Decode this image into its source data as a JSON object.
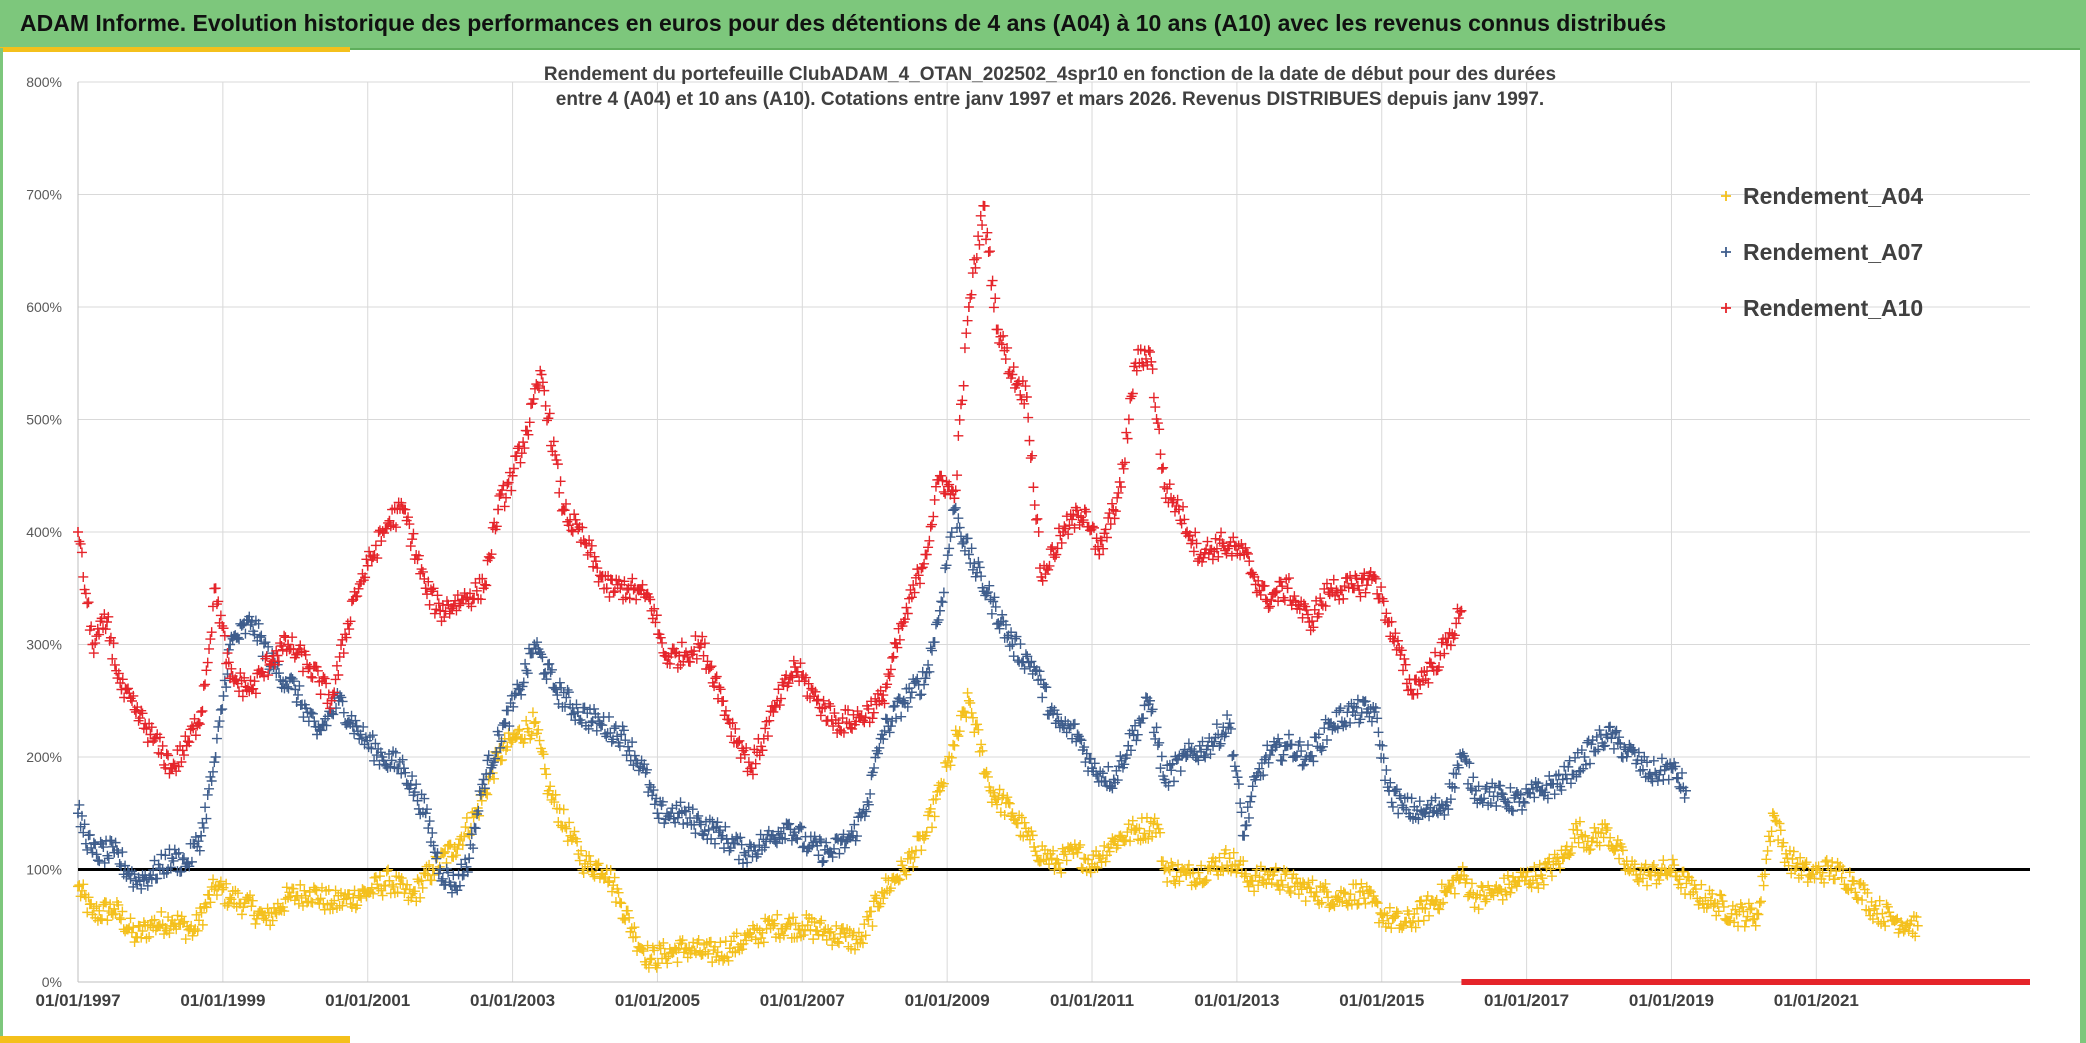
{
  "header": {
    "title": "ADAM Informe. Evolution historique des performances en euros pour des détentions de 4 ans (A04) à 10 ans (A10) avec les revenus connus distribués"
  },
  "chart_data": {
    "type": "scatter",
    "title_lines": [
      "Rendement du portefeuille ClubADAM_4_OTAN_202502_4spr10  en fonction de la date de début pour des durées",
      "entre 4 (A04) et 10 ans (A10). Cotations entre janv 1997 et mars 2026. Revenus DISTRIBUES depuis janv 1997."
    ],
    "xlabel": "",
    "ylabel": "",
    "xlim": [
      1997.0,
      2023.95
    ],
    "ylim": [
      0,
      800
    ],
    "y_unit": "%",
    "y_ticks": [
      "0%",
      "100%",
      "200%",
      "300%",
      "400%",
      "500%",
      "600%",
      "700%",
      "800%"
    ],
    "x_ticks": [
      "01/01/1997",
      "01/01/1999",
      "01/01/2001",
      "01/01/2003",
      "01/01/2005",
      "01/01/2007",
      "01/01/2009",
      "01/01/2011",
      "01/01/2013",
      "01/01/2015",
      "01/01/2017",
      "01/01/2019",
      "01/01/2021"
    ],
    "x_tick_years": [
      1997,
      1999,
      2001,
      2003,
      2005,
      2007,
      2009,
      2011,
      2013,
      2015,
      2017,
      2019,
      2021
    ],
    "reference_line": 100,
    "grid": true,
    "legend_position": "top-right",
    "series": [
      {
        "name": "Rendement_A04",
        "color": "#f4c01c",
        "marker": "plus",
        "x": [
          1997.0,
          1997.2,
          1997.5,
          1997.8,
          1998.0,
          1998.3,
          1998.6,
          1998.9,
          1999.1,
          1999.3,
          1999.6,
          1999.9,
          2000.2,
          2000.5,
          2000.8,
          2001.0,
          2001.3,
          2001.6,
          2001.9,
          2002.2,
          2002.5,
          2002.8,
          2003.0,
          2003.3,
          2003.5,
          2003.8,
          2004.0,
          2004.3,
          2004.5,
          2004.7,
          2004.9,
          2005.1,
          2005.4,
          2005.7,
          2006.0,
          2006.3,
          2006.6,
          2007.0,
          2007.3,
          2007.6,
          2007.8,
          2008.1,
          2008.4,
          2008.7,
          2008.9,
          2009.1,
          2009.3,
          2009.6,
          2009.9,
          2010.2,
          2010.5,
          2010.8,
          2011.0,
          2011.3,
          2011.6,
          2011.9,
          2012.0,
          2012.3,
          2012.6,
          2012.9,
          2013.2,
          2013.5,
          2013.8,
          2014.1,
          2014.4,
          2014.7,
          2015.0,
          2015.3,
          2015.6,
          2015.9,
          2016.1,
          2016.3,
          2016.6,
          2016.9,
          2017.2,
          2017.5,
          2017.7,
          2017.9,
          2018.1,
          2018.4,
          2018.7,
          2019.0,
          2019.3,
          2019.6,
          2019.9,
          2020.2,
          2020.4,
          2020.6,
          2020.9,
          2021.2,
          2021.5,
          2021.8,
          2022.1,
          2022.4
        ],
        "values": [
          85,
          60,
          65,
          40,
          50,
          55,
          45,
          85,
          75,
          70,
          55,
          75,
          80,
          70,
          75,
          80,
          90,
          75,
          100,
          120,
          150,
          200,
          215,
          230,
          170,
          130,
          105,
          100,
          70,
          40,
          20,
          25,
          30,
          25,
          30,
          40,
          50,
          50,
          45,
          40,
          35,
          80,
          100,
          130,
          170,
          210,
          250,
          170,
          150,
          120,
          105,
          115,
          105,
          125,
          135,
          140,
          100,
          95,
          100,
          110,
          90,
          95,
          85,
          80,
          75,
          80,
          60,
          50,
          65,
          80,
          95,
          75,
          80,
          90,
          95,
          110,
          135,
          125,
          135,
          100,
          95,
          100,
          80,
          70,
          60,
          60,
          150,
          110,
          95,
          100,
          90,
          65,
          55,
          50
        ]
      },
      {
        "name": "Rendement_A07",
        "color": "#3e5d8c",
        "marker": "plus",
        "x": [
          1997.0,
          1997.2,
          1997.5,
          1997.8,
          1998.0,
          1998.3,
          1998.5,
          1998.7,
          1998.9,
          1999.1,
          1999.4,
          1999.7,
          2000.0,
          2000.3,
          2000.6,
          2000.9,
          2001.2,
          2001.5,
          2001.8,
          2002.0,
          2002.2,
          2002.4,
          2002.6,
          2002.9,
          2003.1,
          2003.3,
          2003.6,
          2003.9,
          2004.2,
          2004.5,
          2004.8,
          2005.0,
          2005.3,
          2005.6,
          2005.9,
          2006.2,
          2006.5,
          2006.8,
          2007.1,
          2007.4,
          2007.7,
          2007.9,
          2008.1,
          2008.4,
          2008.7,
          2008.9,
          2009.1,
          2009.3,
          2009.6,
          2009.9,
          2010.2,
          2010.5,
          2010.8,
          2011.0,
          2011.3,
          2011.5,
          2011.8,
          2012.0,
          2012.3,
          2012.6,
          2012.9,
          2013.1,
          2013.2,
          2013.4,
          2013.7,
          2014.0,
          2014.3,
          2014.6,
          2014.9,
          2015.1,
          2015.3,
          2015.6,
          2015.9,
          2016.1,
          2016.3,
          2016.6,
          2016.9,
          2017.2,
          2017.5,
          2017.8,
          2018.1,
          2018.4,
          2018.7,
          2019.0,
          2019.2
        ],
        "values": [
          150,
          115,
          115,
          90,
          95,
          110,
          105,
          130,
          200,
          300,
          320,
          280,
          260,
          220,
          250,
          220,
          200,
          190,
          150,
          100,
          85,
          110,
          180,
          230,
          260,
          300,
          260,
          240,
          230,
          220,
          190,
          150,
          150,
          140,
          130,
          115,
          125,
          140,
          120,
          115,
          130,
          160,
          220,
          250,
          270,
          330,
          420,
          380,
          340,
          300,
          280,
          230,
          220,
          190,
          180,
          210,
          250,
          180,
          200,
          210,
          230,
          130,
          165,
          200,
          210,
          200,
          230,
          240,
          240,
          170,
          155,
          150,
          160,
          200,
          170,
          165,
          160,
          170,
          180,
          200,
          220,
          205,
          185,
          190,
          170
        ]
      },
      {
        "name": "Rendement_A10",
        "color": "#e5242a",
        "marker": "plus",
        "x": [
          1997.0,
          1997.2,
          1997.4,
          1997.6,
          1997.8,
          1998.0,
          1998.3,
          1998.5,
          1998.7,
          1998.9,
          1999.1,
          1999.4,
          1999.7,
          1999.9,
          2000.2,
          2000.5,
          2000.8,
          2001.0,
          2001.3,
          2001.5,
          2001.8,
          2002.0,
          2002.3,
          2002.6,
          2002.8,
          2003.0,
          2003.2,
          2003.4,
          2003.7,
          2004.0,
          2004.3,
          2004.6,
          2004.9,
          2005.1,
          2005.3,
          2005.6,
          2005.8,
          2006.0,
          2006.3,
          2006.6,
          2006.9,
          2007.2,
          2007.5,
          2007.8,
          2008.1,
          2008.4,
          2008.7,
          2008.9,
          2009.1,
          2009.3,
          2009.5,
          2009.7,
          2009.9,
          2010.1,
          2010.3,
          2010.6,
          2010.9,
          2011.1,
          2011.4,
          2011.6,
          2011.8,
          2012.0,
          2012.2,
          2012.5,
          2012.8,
          2013.1,
          2013.4,
          2013.7,
          2014.0,
          2014.3,
          2014.6,
          2014.9,
          2015.1,
          2015.4,
          2015.7,
          2015.9,
          2016.1
        ],
        "values": [
          400,
          300,
          320,
          260,
          240,
          220,
          190,
          210,
          240,
          350,
          270,
          260,
          290,
          300,
          280,
          250,
          340,
          370,
          410,
          420,
          350,
          330,
          340,
          350,
          420,
          450,
          490,
          540,
          420,
          390,
          350,
          350,
          340,
          290,
          290,
          300,
          270,
          230,
          190,
          240,
          280,
          250,
          230,
          235,
          250,
          320,
          380,
          450,
          430,
          600,
          690,
          580,
          540,
          520,
          360,
          400,
          420,
          380,
          440,
          550,
          560,
          440,
          420,
          380,
          390,
          380,
          340,
          350,
          320,
          350,
          350,
          360,
          320,
          260,
          280,
          300,
          330
        ]
      }
    ]
  }
}
